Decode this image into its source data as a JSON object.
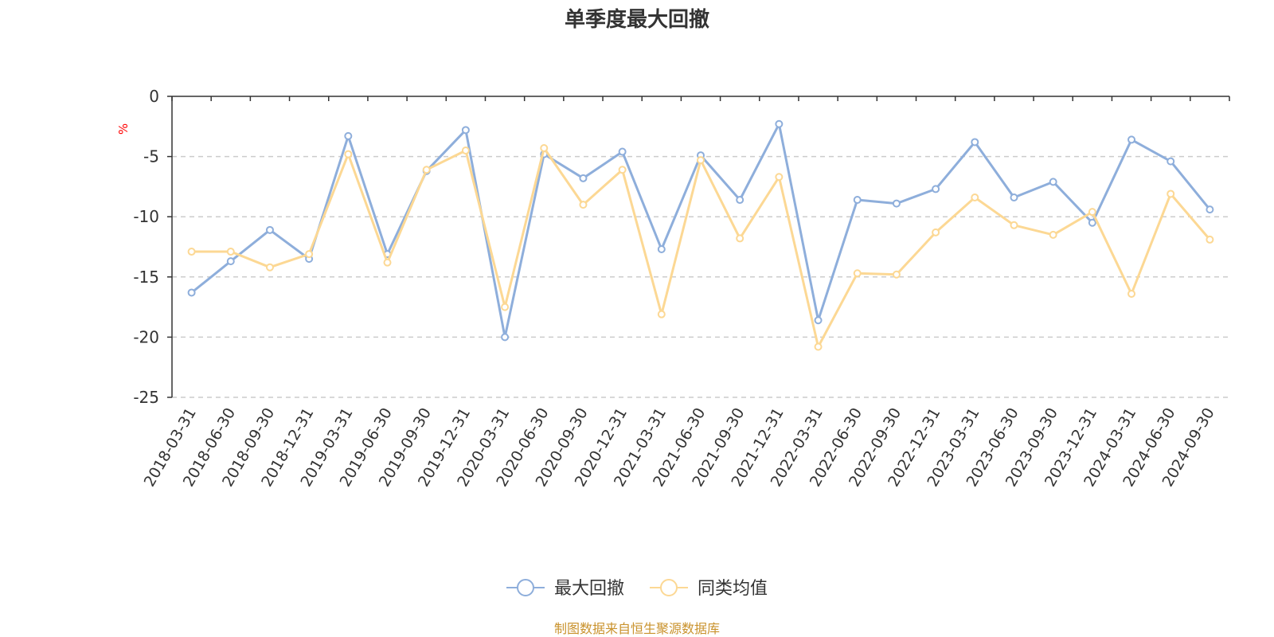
{
  "chart_data": {
    "type": "line",
    "title": "单季度最大回撤",
    "ylabel": "%",
    "xlabel": "",
    "ylim": [
      -25,
      0
    ],
    "yticks": [
      0,
      -5,
      -10,
      -15,
      -20,
      -25
    ],
    "grid": "horizontal-dashed",
    "legend_position": "bottom-center",
    "categories": [
      "2018-03-31",
      "2018-06-30",
      "2018-09-30",
      "2018-12-31",
      "2019-03-31",
      "2019-06-30",
      "2019-09-30",
      "2019-12-31",
      "2020-03-31",
      "2020-06-30",
      "2020-09-30",
      "2020-12-31",
      "2021-03-31",
      "2021-06-30",
      "2021-09-30",
      "2021-12-31",
      "2022-03-31",
      "2022-06-30",
      "2022-09-30",
      "2022-12-31",
      "2023-03-31",
      "2023-06-30",
      "2023-09-30",
      "2023-12-31",
      "2024-03-31",
      "2024-06-30",
      "2024-09-30"
    ],
    "series": [
      {
        "name": "最大回撤",
        "color": "#8eaedb",
        "values": [
          -16.3,
          -13.7,
          -11.1,
          -13.5,
          -3.3,
          -13.1,
          -6.2,
          -2.8,
          -20.0,
          -4.8,
          -6.8,
          -4.6,
          -12.7,
          -4.9,
          -8.6,
          -2.3,
          -18.6,
          -8.6,
          -8.9,
          -7.7,
          -3.8,
          -8.4,
          -7.1,
          -10.5,
          -3.6,
          -5.4,
          -9.4
        ]
      },
      {
        "name": "同类均值",
        "color": "#fcd894",
        "values": [
          -12.9,
          -12.9,
          -14.2,
          -13.1,
          -4.8,
          -13.8,
          -6.1,
          -4.5,
          -17.5,
          -4.3,
          -9.0,
          -6.1,
          -18.1,
          -5.3,
          -11.8,
          -6.7,
          -20.8,
          -14.7,
          -14.8,
          -11.3,
          -8.4,
          -10.7,
          -11.5,
          -9.6,
          -16.4,
          -8.1,
          -11.9
        ]
      }
    ]
  },
  "footer": {
    "source": "制图数据来自恒生聚源数据库"
  }
}
